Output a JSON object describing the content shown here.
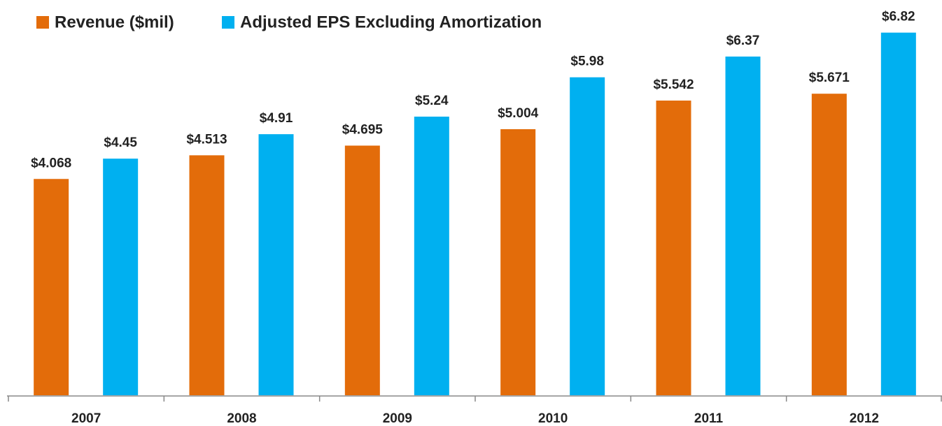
{
  "chart_data": {
    "type": "bar",
    "categories": [
      "2007",
      "2008",
      "2009",
      "2010",
      "2011",
      "2012"
    ],
    "series": [
      {
        "name": "Revenue ($mil)",
        "color": "#e36c0a",
        "values": [
          4.068,
          4.513,
          4.695,
          5.004,
          5.542,
          5.671
        ],
        "value_labels": [
          "$4.068",
          "$4.513",
          "$4.695",
          "$5.004",
          "$5.542",
          "$5.671"
        ]
      },
      {
        "name": "Adjusted EPS Excluding Amortization",
        "color": "#00b0f0",
        "values": [
          4.45,
          4.91,
          5.24,
          5.98,
          6.37,
          6.82
        ],
        "value_labels": [
          "$4.45",
          "$4.91",
          "$5.24",
          "$5.98",
          "$6.37",
          "$6.82"
        ]
      }
    ],
    "ylim": [
      0,
      7
    ],
    "legend": "top-left"
  }
}
